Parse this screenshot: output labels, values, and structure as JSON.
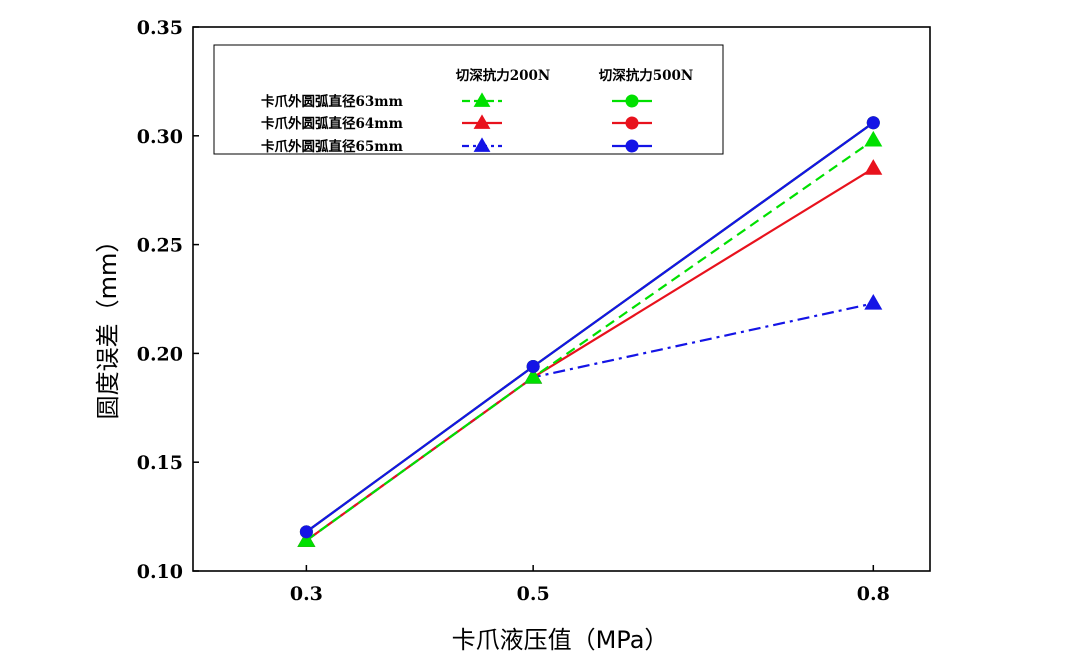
{
  "chart_data": {
    "type": "line",
    "xlabel": "卡爪液压值（MPa）",
    "ylabel": "圆度误差（mm）",
    "x": [
      0.3,
      0.5,
      0.8
    ],
    "x_ticks": [
      "0.3",
      "0.5",
      "0.8"
    ],
    "xlim": [
      0.2,
      0.85
    ],
    "ylim": [
      0.1,
      0.35
    ],
    "y_ticks": [
      "0.10",
      "0.15",
      "0.20",
      "0.25",
      "0.30",
      "0.35"
    ],
    "grid": false,
    "legend_placement": "top-left",
    "legend_columns": [
      "切深抗力200N",
      "切深抗力500N"
    ],
    "legend_rows": [
      "卡爪外圆弧直径63mm",
      "卡爪外圆弧直径64mm",
      "卡爪外圆弧直径65mm"
    ],
    "series": [
      {
        "row": 0,
        "column": 0,
        "color": "#00e000",
        "marker": "triangle",
        "line": "dash",
        "values": [
          0.114,
          0.189,
          0.298
        ]
      },
      {
        "row": 1,
        "column": 0,
        "color": "#e8121d",
        "marker": "triangle",
        "line": "solid",
        "values": [
          0.114,
          0.189,
          0.285
        ]
      },
      {
        "row": 2,
        "column": 0,
        "color": "#1414e6",
        "marker": "triangle",
        "line": "dashdot",
        "values": [
          0.114,
          0.189,
          0.223
        ]
      },
      {
        "row": 0,
        "column": 1,
        "color": "#00e000",
        "marker": "circle",
        "line": "solid",
        "values": [
          0.118,
          0.194,
          0.306
        ]
      },
      {
        "row": 1,
        "column": 1,
        "color": "#e8121d",
        "marker": "circle",
        "line": "solid",
        "values": [
          0.118,
          0.194,
          0.306
        ]
      },
      {
        "row": 2,
        "column": 1,
        "color": "#1414e6",
        "marker": "circle",
        "line": "solid",
        "values": [
          0.118,
          0.194,
          0.306
        ]
      }
    ]
  }
}
